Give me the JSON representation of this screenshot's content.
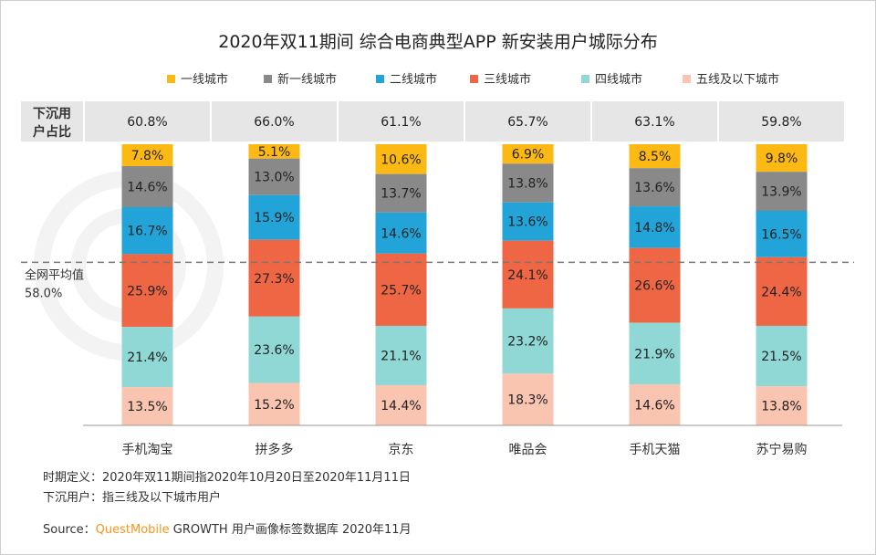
{
  "chart_data": {
    "type": "bar",
    "stacked": true,
    "title": "2020年双11期间 综合电商典型APP 新安装用户城际分布",
    "categories": [
      "手机淘宝",
      "拼多多",
      "京东",
      "唯品会",
      "手机天猫",
      "苏宁易购"
    ],
    "series": [
      {
        "name": "一线城市",
        "color": "#FDB913",
        "values": [
          7.8,
          5.1,
          10.6,
          6.9,
          8.5,
          9.8
        ]
      },
      {
        "name": "新一线城市",
        "color": "#898989",
        "values": [
          14.6,
          13.0,
          13.7,
          13.8,
          13.6,
          13.9
        ]
      },
      {
        "name": "二线城市",
        "color": "#22A4D9",
        "values": [
          16.7,
          15.9,
          14.6,
          13.6,
          14.8,
          16.5
        ]
      },
      {
        "name": "三线城市",
        "color": "#EE6644",
        "values": [
          25.9,
          27.3,
          25.7,
          24.1,
          26.6,
          24.4
        ]
      },
      {
        "name": "四线城市",
        "color": "#8FD8D6",
        "values": [
          21.4,
          23.6,
          21.1,
          23.2,
          21.9,
          21.5
        ]
      },
      {
        "name": "五线及以下城市",
        "color": "#F9C4B0",
        "values": [
          13.5,
          15.2,
          14.4,
          18.3,
          14.6,
          13.8
        ]
      }
    ],
    "ylim": [
      0,
      100
    ],
    "legend_position": "top",
    "grid": false,
    "header_row": {
      "label": "下沉用户占比",
      "values": [
        "60.8%",
        "66.0%",
        "61.1%",
        "65.7%",
        "63.1%",
        "59.8%"
      ]
    },
    "reference_line": {
      "label": "全网平均值",
      "value": 58.0,
      "value_label": "58.0%"
    }
  },
  "notes": {
    "period": "时期定义：2020年双11期间指2020年10月20日至2020年11月11日",
    "lower_tier": "下沉用户：指三线及以下城市用户",
    "source_prefix": "Source：",
    "source_brand": "QuestMobile",
    "source_rest": " GROWTH 用户画像标签数据库 2020年11月"
  },
  "watermark": "QUESTMOBILE"
}
